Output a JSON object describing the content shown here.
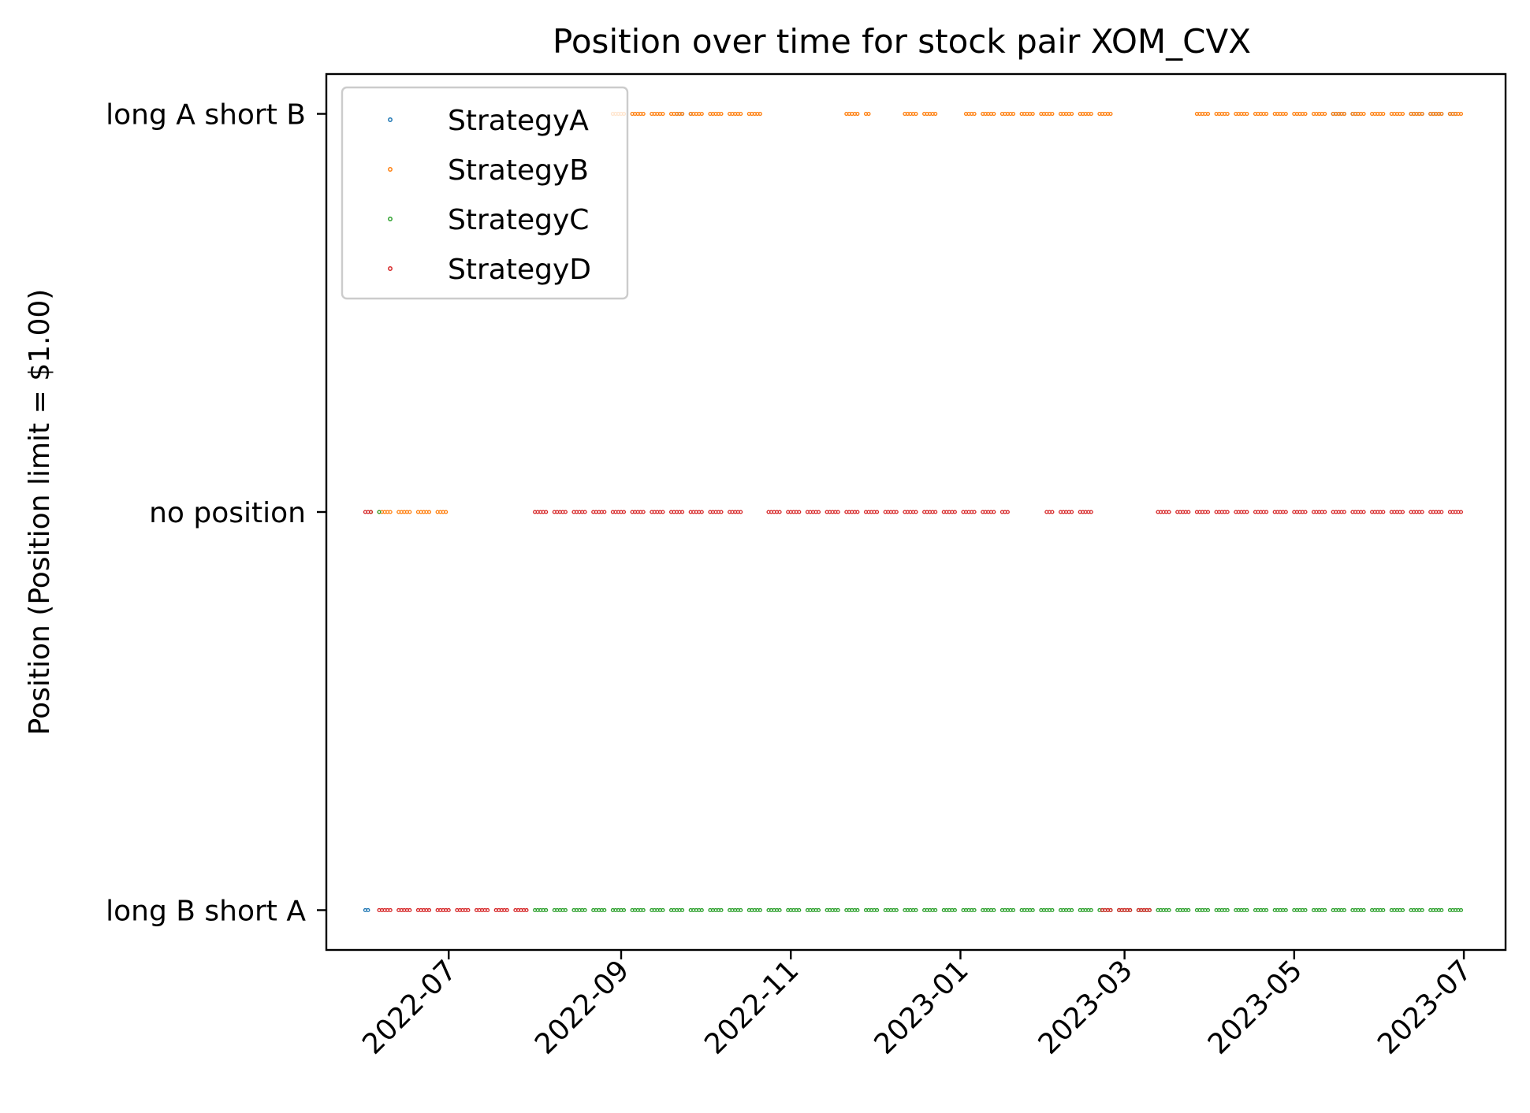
{
  "chart_data": {
    "type": "scatter",
    "title": "Position over time for stock pair XOM_CVX",
    "xlabel": "",
    "ylabel": "Position (Position limit = $1.00)",
    "x_axis": {
      "type": "date",
      "range": [
        "2022-05-18",
        "2023-07-16"
      ],
      "ticks": [
        "2022-07-01",
        "2022-09-01",
        "2022-11-01",
        "2023-01-01",
        "2023-03-01",
        "2023-05-01",
        "2023-07-01"
      ],
      "tick_labels": [
        "2022-07",
        "2022-09",
        "2022-11",
        "2023-01",
        "2023-03",
        "2023-05",
        "2023-07"
      ]
    },
    "y_axis": {
      "range": [
        -1.1,
        1.1
      ],
      "ticks": [
        1,
        0,
        -1
      ],
      "tick_labels": [
        "long A short B",
        "no position",
        "long B short A"
      ]
    },
    "grid": false,
    "legend_position": "upper-left",
    "series": [
      {
        "name": "StrategyA",
        "color": "#1f77b4",
        "segments": [
          {
            "start": "2022-06-01",
            "end": "2022-06-02",
            "y": -1
          },
          {
            "start": "2022-09-21",
            "end": "2022-09-26",
            "y": 1
          },
          {
            "start": "2023-05-15",
            "end": "2023-05-24",
            "y": 1
          },
          {
            "start": "2023-06-12",
            "end": "2023-06-28",
            "y": 1
          }
        ]
      },
      {
        "name": "StrategyB",
        "color": "#ff7f0e",
        "segments": [
          {
            "start": "2022-06-03",
            "end": "2022-06-30",
            "y": 0
          },
          {
            "start": "2022-08-29",
            "end": "2022-10-21",
            "y": 1
          },
          {
            "start": "2022-11-21",
            "end": "2022-11-29",
            "y": 1
          },
          {
            "start": "2022-12-12",
            "end": "2022-12-23",
            "y": 1
          },
          {
            "start": "2023-01-03",
            "end": "2023-02-24",
            "y": 1
          },
          {
            "start": "2023-03-27",
            "end": "2023-06-30",
            "y": 1
          }
        ]
      },
      {
        "name": "StrategyC",
        "color": "#2ca02c",
        "segments": [
          {
            "start": "2022-06-03",
            "end": "2022-06-06",
            "y": 0
          },
          {
            "start": "2022-08-01",
            "end": "2023-06-30",
            "y": -1
          }
        ]
      },
      {
        "name": "StrategyD",
        "color": "#d62728",
        "segments": [
          {
            "start": "2022-06-01",
            "end": "2022-06-03",
            "y": 0
          },
          {
            "start": "2022-06-06",
            "end": "2022-07-29",
            "y": -1
          },
          {
            "start": "2022-08-01",
            "end": "2022-10-14",
            "y": 0
          },
          {
            "start": "2022-10-24",
            "end": "2023-01-18",
            "y": 0
          },
          {
            "start": "2023-02-01",
            "end": "2023-02-17",
            "y": 0
          },
          {
            "start": "2023-02-21",
            "end": "2023-03-10",
            "y": -1
          },
          {
            "start": "2023-03-13",
            "end": "2023-06-30",
            "y": 0
          }
        ]
      }
    ]
  }
}
